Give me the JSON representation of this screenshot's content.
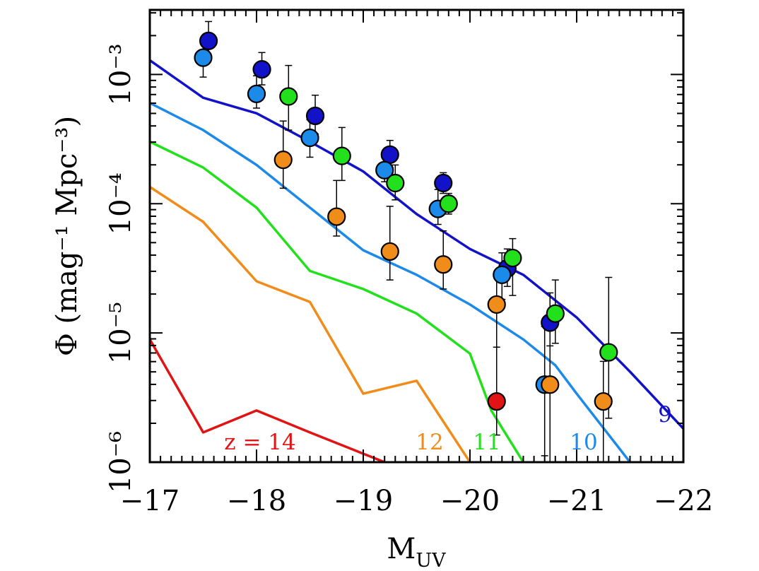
{
  "chart_data": {
    "type": "line",
    "xlabel_main": "M",
    "xlabel_sub": "UV",
    "ylabel": "Φ (mag⁻¹ Mpc⁻³)",
    "xlim": [
      -17,
      -22
    ],
    "ylim_log10": [
      -6,
      -2.5
    ],
    "y_scale": "log",
    "x_ticks": [
      -17,
      -18,
      -19,
      -20,
      -21,
      -22
    ],
    "x_tick_labels": [
      "−17",
      "−18",
      "−19",
      "−20",
      "−21",
      "−22"
    ],
    "y_ticks": [
      -6,
      -5,
      -4,
      -3
    ],
    "y_tick_labels": [
      "10⁻⁶",
      "10⁻⁵",
      "10⁻⁴",
      "10⁻³"
    ],
    "series": [
      {
        "label": "9",
        "color": "#1212c8",
        "x": [
          -17,
          -17.5,
          -18,
          -18.5,
          -19,
          -19.5,
          -20,
          -20.5,
          -21,
          -21.5,
          -22
        ],
        "log10_phi": [
          -2.89,
          -3.18,
          -3.3,
          -3.52,
          -3.75,
          -4.08,
          -4.35,
          -4.55,
          -4.88,
          -5.3,
          -5.74
        ]
      },
      {
        "label": "10",
        "color": "#1c8ae8",
        "x": [
          -17,
          -17.5,
          -18,
          -18.5,
          -19,
          -19.5,
          -20,
          -20.5,
          -20.8,
          -21,
          -21.5
        ],
        "log10_phi": [
          -3.22,
          -3.43,
          -3.7,
          -4.03,
          -4.36,
          -4.55,
          -4.78,
          -5.05,
          -5.25,
          -5.47,
          -6
        ]
      },
      {
        "label": "11",
        "color": "#22e01c",
        "x": [
          -17,
          -17.5,
          -18,
          -18.5,
          -19,
          -19.5,
          -20,
          -20.2,
          -20.5
        ],
        "log10_phi": [
          -3.52,
          -3.72,
          -4.03,
          -4.52,
          -4.66,
          -4.85,
          -5.16,
          -5.6,
          -6
        ]
      },
      {
        "label": "12",
        "color": "#f08c1a",
        "x": [
          -17,
          -17.5,
          -18,
          -18.5,
          -19,
          -19.5,
          -20
        ],
        "log10_phi": [
          -3.87,
          -4.14,
          -4.6,
          -4.76,
          -5.47,
          -5.37,
          -6
        ]
      },
      {
        "label": "z = 14",
        "color": "#e01414",
        "x": [
          -17,
          -17.5,
          -18,
          -18.5,
          -19.2
        ],
        "log10_phi": [
          -5.05,
          -5.77,
          -5.6,
          -5.77,
          -6
        ]
      }
    ],
    "points": [
      {
        "color": "#1212c8",
        "x": -17.55,
        "log10_phi": -2.74,
        "err_up": 0.15,
        "err_down": 0.13
      },
      {
        "color": "#1212c8",
        "x": -18.05,
        "log10_phi": -2.96,
        "err_up": 0.13,
        "err_down": 0.12
      },
      {
        "color": "#1212c8",
        "x": -18.55,
        "log10_phi": -3.32,
        "err_up": 0.16,
        "err_down": 0.14
      },
      {
        "color": "#1212c8",
        "x": -19.25,
        "log10_phi": -3.62,
        "err_up": 0.11,
        "err_down": 0.1
      },
      {
        "color": "#1212c8",
        "x": -19.75,
        "log10_phi": -3.84,
        "err_up": 0.08,
        "err_down": 0.08
      },
      {
        "color": "#1212c8",
        "x": -20.35,
        "log10_phi": -4.5,
        "err_up": 0.15,
        "err_down": 0.14
      },
      {
        "color": "#1212c8",
        "x": -20.75,
        "log10_phi": -4.92,
        "err_up": 0.23,
        "err_down": 0.18
      },
      {
        "color": "#1c8ae8",
        "x": -17.5,
        "log10_phi": -2.87,
        "err_up": 0.13,
        "err_down": 0.15
      },
      {
        "color": "#1c8ae8",
        "x": -18.0,
        "log10_phi": -3.15,
        "err_up": 0.14,
        "err_down": 0.11
      },
      {
        "color": "#1c8ae8",
        "x": -18.5,
        "log10_phi": -3.49,
        "err_up": 0.14,
        "err_down": 0.15
      },
      {
        "color": "#1c8ae8",
        "x": -19.2,
        "log10_phi": -3.74,
        "err_up": 0.1,
        "err_down": 0.09
      },
      {
        "color": "#1c8ae8",
        "x": -19.7,
        "log10_phi": -4.04,
        "err_up": 0.15,
        "err_down": 0.12
      },
      {
        "color": "#1c8ae8",
        "x": -20.3,
        "log10_phi": -4.55,
        "err_up": 0.17,
        "err_down": 0.19
      },
      {
        "color": "#1c8ae8",
        "x": -20.7,
        "log10_phi": -5.4,
        "err_up": 0.45,
        "err_down": 0.55
      },
      {
        "color": "#22e01c",
        "x": -18.3,
        "log10_phi": -3.17,
        "err_up": 0.24,
        "err_down": 0.26
      },
      {
        "color": "#22e01c",
        "x": -18.8,
        "log10_phi": -3.63,
        "err_up": 0.22,
        "err_down": 0.19
      },
      {
        "color": "#22e01c",
        "x": -19.3,
        "log10_phi": -3.84,
        "err_up": 0.14,
        "err_down": 0.13
      },
      {
        "color": "#22e01c",
        "x": -19.8,
        "log10_phi": -4.0,
        "err_up": 0.08,
        "err_down": 0.08
      },
      {
        "color": "#22e01c",
        "x": -20.4,
        "log10_phi": -4.42,
        "err_up": 0.15,
        "err_down": 0.29
      },
      {
        "color": "#22e01c",
        "x": -20.8,
        "log10_phi": -4.85,
        "err_up": 0.26,
        "err_down": 0.23
      },
      {
        "color": "#22e01c",
        "x": -21.3,
        "log10_phi": -5.15,
        "err_up": 0.58,
        "err_down": 0.51
      },
      {
        "color": "#f08c1a",
        "x": -18.25,
        "log10_phi": -3.66,
        "err_up": 0.3,
        "err_down": 0.22
      },
      {
        "color": "#f08c1a",
        "x": -18.75,
        "log10_phi": -4.1,
        "err_up": 0.28,
        "err_down": 0.15
      },
      {
        "color": "#f08c1a",
        "x": -19.25,
        "log10_phi": -4.37,
        "err_up": 0.35,
        "err_down": 0.22
      },
      {
        "color": "#f08c1a",
        "x": -19.75,
        "log10_phi": -4.47,
        "err_up": 0.26,
        "err_down": 0.19
      },
      {
        "color": "#f08c1a",
        "x": -20.25,
        "log10_phi": -4.78,
        "err_up": 0.24,
        "err_down": 0.72
      },
      {
        "color": "#f08c1a",
        "x": -20.75,
        "log10_phi": -5.4,
        "err_up": 0.42,
        "err_down": 0.71
      },
      {
        "color": "#f08c1a",
        "x": -21.25,
        "log10_phi": -5.53,
        "err_up": 0.31,
        "err_down": 0.52
      },
      {
        "color": "#e01414",
        "x": -20.25,
        "log10_phi": -5.53,
        "err_up": 0.42,
        "err_down": 0.26
      }
    ]
  }
}
